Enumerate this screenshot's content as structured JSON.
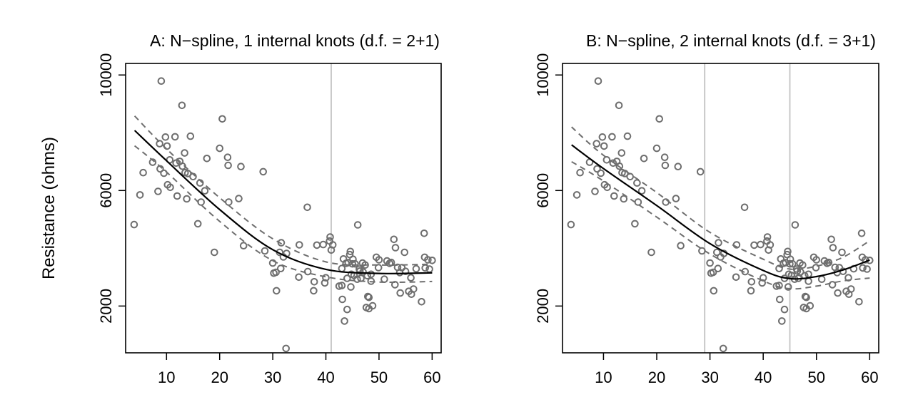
{
  "y_axis_label": "Resistance (ohms)",
  "chart_data": [
    {
      "type": "scatter",
      "title": "A: N−spline, 1 internal knots (d.f. = 2+1)",
      "xlabel": "",
      "ylabel": "Resistance (ohms)",
      "xlim": [
        2.3,
        61.7
      ],
      "ylim": [
        380,
        10400
      ],
      "xticks": [
        10,
        20,
        30,
        40,
        50,
        60
      ],
      "yticks": [
        2000,
        6000,
        10000
      ],
      "knots": [
        41
      ],
      "grid": false,
      "colors": {
        "points": "#6e6e6e",
        "fit": "#000000",
        "band": "#6e6e6e",
        "knot": "#c8c8c8"
      },
      "points": [
        [
          3.9,
          4820
        ],
        [
          5.0,
          5850
        ],
        [
          5.6,
          6620
        ],
        [
          7.4,
          6980
        ],
        [
          8.4,
          5970
        ],
        [
          8.7,
          7620
        ],
        [
          8.8,
          6750
        ],
        [
          9.0,
          9790
        ],
        [
          9.5,
          6600
        ],
        [
          9.8,
          7850
        ],
        [
          10.1,
          7540
        ],
        [
          10.2,
          6200
        ],
        [
          10.6,
          7060
        ],
        [
          10.7,
          6110
        ],
        [
          11.6,
          7860
        ],
        [
          11.8,
          6950
        ],
        [
          12.0,
          5810
        ],
        [
          12.5,
          7010
        ],
        [
          12.9,
          8950
        ],
        [
          13.0,
          6840
        ],
        [
          13.4,
          7300
        ],
        [
          13.5,
          6620
        ],
        [
          13.8,
          5710
        ],
        [
          14.0,
          6590
        ],
        [
          14.5,
          7880
        ],
        [
          15.0,
          6480
        ],
        [
          15.9,
          4850
        ],
        [
          16.3,
          6260
        ],
        [
          16.5,
          5600
        ],
        [
          17.2,
          5990
        ],
        [
          17.6,
          7110
        ],
        [
          19.0,
          3860
        ],
        [
          20.0,
          7460
        ],
        [
          20.5,
          8480
        ],
        [
          21.5,
          7150
        ],
        [
          21.6,
          6870
        ],
        [
          21.7,
          5600
        ],
        [
          23.6,
          5720
        ],
        [
          24.0,
          6830
        ],
        [
          24.5,
          4090
        ],
        [
          28.2,
          6650
        ],
        [
          28.5,
          3910
        ],
        [
          30.0,
          3490
        ],
        [
          30.2,
          3140
        ],
        [
          30.6,
          3170
        ],
        [
          30.7,
          2530
        ],
        [
          31.3,
          3860
        ],
        [
          31.5,
          3300
        ],
        [
          31.6,
          4190
        ],
        [
          32.0,
          3700
        ],
        [
          32.5,
          530
        ],
        [
          32.6,
          3820
        ],
        [
          34.9,
          3000
        ],
        [
          35.0,
          4120
        ],
        [
          36.5,
          5420
        ],
        [
          36.6,
          3190
        ],
        [
          37.7,
          2530
        ],
        [
          37.8,
          2840
        ],
        [
          38.3,
          4110
        ],
        [
          39.5,
          4130
        ],
        [
          39.8,
          2800
        ],
        [
          40.0,
          2980
        ],
        [
          40.7,
          4250
        ],
        [
          40.8,
          4390
        ],
        [
          41.0,
          3940
        ],
        [
          41.3,
          4120
        ],
        [
          42.5,
          2690
        ],
        [
          43.0,
          2710
        ],
        [
          43.0,
          3300
        ],
        [
          43.1,
          2230
        ],
        [
          43.3,
          3630
        ],
        [
          43.5,
          1480
        ],
        [
          43.8,
          3480
        ],
        [
          44.0,
          1880
        ],
        [
          44.0,
          2960
        ],
        [
          44.2,
          3500
        ],
        [
          44.5,
          3780
        ],
        [
          44.6,
          3890
        ],
        [
          44.7,
          2660
        ],
        [
          44.8,
          3100
        ],
        [
          45.0,
          3460
        ],
        [
          45.1,
          3620
        ],
        [
          45.3,
          3060
        ],
        [
          45.5,
          3460
        ],
        [
          45.9,
          2930
        ],
        [
          46.0,
          4810
        ],
        [
          46.3,
          3280
        ],
        [
          46.4,
          3210
        ],
        [
          46.6,
          2960
        ],
        [
          46.9,
          3490
        ],
        [
          47.0,
          3180
        ],
        [
          47.4,
          3420
        ],
        [
          47.6,
          1950
        ],
        [
          47.8,
          3050
        ],
        [
          47.9,
          2330
        ],
        [
          48.1,
          2300
        ],
        [
          48.1,
          1910
        ],
        [
          48.5,
          2860
        ],
        [
          48.5,
          3100
        ],
        [
          48.8,
          2010
        ],
        [
          49.5,
          3690
        ],
        [
          49.9,
          3330
        ],
        [
          50.0,
          3600
        ],
        [
          51.0,
          2930
        ],
        [
          51.5,
          3560
        ],
        [
          52.0,
          3480
        ],
        [
          52.3,
          3510
        ],
        [
          52.8,
          4310
        ],
        [
          53.0,
          2740
        ],
        [
          53.1,
          4020
        ],
        [
          53.5,
          3340
        ],
        [
          53.9,
          3160
        ],
        [
          54.0,
          2450
        ],
        [
          54.3,
          3330
        ],
        [
          54.8,
          3860
        ],
        [
          55.0,
          3200
        ],
        [
          55.6,
          2510
        ],
        [
          56.0,
          2980
        ],
        [
          56.1,
          2410
        ],
        [
          56.5,
          2590
        ],
        [
          57.0,
          3290
        ],
        [
          58.0,
          2150
        ],
        [
          58.5,
          4520
        ],
        [
          58.6,
          3690
        ],
        [
          58.7,
          3320
        ],
        [
          59.2,
          3600
        ],
        [
          59.5,
          3280
        ],
        [
          60.0,
          3580
        ]
      ],
      "fit": {
        "x": [
          4,
          10,
          20,
          30,
          40,
          50,
          60
        ],
        "y": [
          8080,
          7030,
          5340,
          3950,
          3270,
          3130,
          3150
        ]
      },
      "band_upper": {
        "x": [
          4,
          10,
          20,
          30,
          40,
          50,
          60
        ],
        "y": [
          8580,
          7440,
          5750,
          4330,
          3530,
          3420,
          3450
        ]
      },
      "band_lower": {
        "x": [
          4,
          10,
          20,
          30,
          40,
          50,
          60
        ],
        "y": [
          7550,
          6640,
          4930,
          3570,
          3010,
          2830,
          2850
        ]
      }
    },
    {
      "type": "scatter",
      "title": "B: N−spline, 2 internal knots (d.f. = 3+1)",
      "xlabel": "",
      "ylabel": "",
      "xlim": [
        2.3,
        61.7
      ],
      "ylim": [
        380,
        10400
      ],
      "xticks": [
        10,
        20,
        30,
        40,
        50,
        60
      ],
      "yticks": [
        2000,
        6000,
        10000
      ],
      "knots": [
        29,
        45
      ],
      "grid": false,
      "colors": {
        "points": "#6e6e6e",
        "fit": "#000000",
        "band": "#6e6e6e",
        "knot": "#c8c8c8"
      },
      "points_same_as_panel": 0,
      "fit": {
        "x": [
          4,
          10,
          20,
          30,
          40,
          45,
          50,
          55,
          60
        ],
        "y": [
          7580,
          6760,
          5480,
          4160,
          3230,
          2950,
          3020,
          3250,
          3590
        ]
      },
      "band_upper": {
        "x": [
          4,
          10,
          20,
          30,
          40,
          45,
          50,
          55,
          60
        ],
        "y": [
          8200,
          7220,
          5930,
          4550,
          3620,
          3280,
          3380,
          3690,
          4260
        ]
      },
      "band_lower": {
        "x": [
          4,
          10,
          20,
          30,
          40,
          45,
          50,
          55,
          60
        ],
        "y": [
          7000,
          6330,
          5080,
          3800,
          2870,
          2600,
          2690,
          2870,
          2970
        ]
      }
    }
  ]
}
